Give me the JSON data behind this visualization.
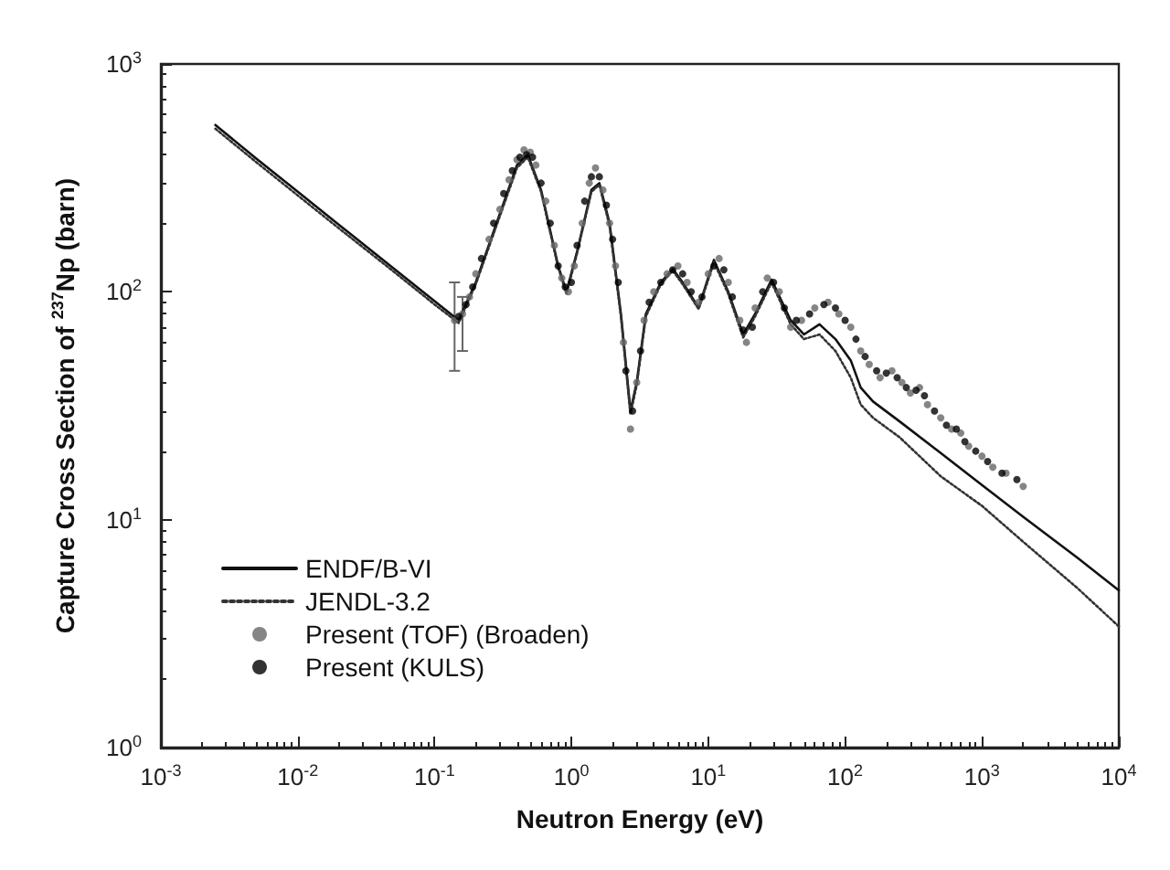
{
  "chart_data": {
    "type": "line",
    "xlabel": "Neutron Energy (eV)",
    "ylabel": "Capture Cross Section of $^{237}$Np (barn)",
    "log": "xy",
    "grid": false,
    "legend": "bottom left",
    "xlim": [
      0.001,
      10000
    ],
    "ylim": [
      1,
      1000
    ],
    "xticks": [
      {
        "value": 0.001,
        "label": "10$^{-3}$"
      },
      {
        "value": 0.01,
        "label": "10$^{-2}$"
      },
      {
        "value": 0.1,
        "label": "10$^{-1}$"
      },
      {
        "value": 1,
        "label": "10$^{0}$"
      },
      {
        "value": 10,
        "label": "10$^{1}$"
      },
      {
        "value": 100,
        "label": "10$^{2}$"
      },
      {
        "value": 1000,
        "label": "10$^{3}$"
      },
      {
        "value": 10000,
        "label": "10$^{4}$"
      }
    ],
    "yticks": [
      {
        "value": 1,
        "label": "10$^{0}$"
      },
      {
        "value": 10,
        "label": "10$^{1}$"
      },
      {
        "value": 100,
        "label": "10$^{2}$"
      },
      {
        "value": 1000,
        "label": "10$^{3}$"
      }
    ],
    "series": [
      {
        "name": "ENDF/B-VI",
        "color": "#111111",
        "line_style": "solid",
        "marker": "none",
        "x": [
          0.0025,
          0.005,
          0.01,
          0.02,
          0.05,
          0.1,
          0.15,
          0.2,
          0.3,
          0.4,
          0.48,
          0.6,
          0.8,
          0.92,
          1.1,
          1.4,
          1.6,
          1.9,
          2.3,
          2.7,
          3.0,
          3.5,
          4.5,
          5.5,
          6.5,
          8.5,
          11,
          14,
          18,
          22,
          29,
          40,
          50,
          65,
          85,
          110,
          130,
          160,
          250,
          500,
          1000,
          2000,
          5000,
          10000
        ],
        "values": [
          540,
          384,
          275,
          197,
          127,
          91,
          75,
          110,
          220,
          360,
          400,
          280,
          130,
          100,
          150,
          280,
          300,
          200,
          80,
          30,
          40,
          80,
          110,
          126,
          110,
          85,
          138,
          100,
          65,
          80,
          113,
          75,
          65,
          72,
          62,
          50,
          38,
          33,
          27,
          19.6,
          14.2,
          10.3,
          6.8,
          4.9
        ]
      },
      {
        "name": "JENDL-3.2",
        "color": "#333333",
        "line_style": "dotted",
        "marker": "none",
        "x": [
          0.0025,
          0.005,
          0.01,
          0.02,
          0.05,
          0.1,
          0.15,
          0.2,
          0.3,
          0.4,
          0.48,
          0.6,
          0.8,
          0.92,
          1.1,
          1.4,
          1.6,
          1.9,
          2.3,
          2.7,
          3.0,
          3.5,
          4.5,
          5.5,
          6.5,
          8.5,
          11,
          14,
          18,
          22,
          29,
          40,
          50,
          65,
          85,
          110,
          130,
          160,
          250,
          500,
          1000,
          2000,
          5000,
          10000
        ],
        "values": [
          520,
          370,
          265,
          190,
          123,
          88,
          73,
          108,
          215,
          350,
          390,
          275,
          128,
          98,
          148,
          275,
          295,
          195,
          78,
          29,
          39,
          78,
          108,
          124,
          108,
          84,
          135,
          98,
          63,
          78,
          110,
          72,
          62,
          65,
          55,
          42,
          32,
          28,
          23,
          15.5,
          11.5,
          8,
          5,
          3.4
        ]
      },
      {
        "name": "Present (TOF) (Broaden)",
        "type": "scatter",
        "color": "#666666",
        "marker": "circle",
        "x": [
          0.14,
          0.16,
          0.18,
          0.2,
          0.25,
          0.3,
          0.35,
          0.4,
          0.45,
          0.5,
          0.55,
          0.65,
          0.75,
          0.85,
          0.95,
          1.05,
          1.2,
          1.35,
          1.5,
          1.7,
          1.9,
          2.1,
          2.4,
          2.7,
          3.0,
          3.4,
          4,
          5,
          6,
          7,
          8.5,
          10,
          12,
          14,
          17,
          19,
          22,
          27,
          33,
          40,
          48,
          60,
          75,
          90,
          110,
          130,
          150,
          180,
          220,
          260,
          300,
          350,
          400,
          500,
          600,
          700,
          800,
          1000,
          1200,
          1500,
          2000
        ],
        "values": [
          75,
          80,
          95,
          120,
          170,
          230,
          310,
          380,
          420,
          410,
          360,
          250,
          160,
          115,
          100,
          130,
          200,
          300,
          350,
          280,
          200,
          130,
          60,
          25,
          40,
          75,
          100,
          120,
          130,
          110,
          90,
          120,
          140,
          110,
          75,
          60,
          85,
          115,
          100,
          70,
          75,
          85,
          90,
          80,
          70,
          55,
          48,
          42,
          45,
          40,
          36,
          38,
          32,
          28,
          25,
          24,
          21,
          19,
          17,
          16,
          14
        ],
        "errors": [
          [
            45,
            110
          ],
          [
            55,
            95
          ],
          null,
          null,
          null,
          null,
          null,
          null,
          null,
          null,
          null,
          null,
          null,
          null,
          null,
          null,
          null,
          null,
          null,
          null,
          null,
          null,
          null,
          null,
          null,
          null,
          null,
          null,
          null,
          null,
          null,
          null,
          null,
          null,
          null,
          null,
          null,
          null,
          null,
          null,
          null,
          null,
          null,
          null,
          null,
          null,
          null,
          null,
          null,
          null,
          null,
          null,
          null,
          null,
          null,
          null,
          null,
          null,
          null,
          null,
          null
        ]
      },
      {
        "name": "Present (KULS)",
        "type": "scatter",
        "color": "#000000",
        "marker": "circle",
        "x": [
          0.15,
          0.17,
          0.19,
          0.22,
          0.27,
          0.32,
          0.37,
          0.42,
          0.47,
          0.52,
          0.6,
          0.7,
          0.8,
          0.9,
          1.0,
          1.1,
          1.25,
          1.4,
          1.6,
          1.8,
          2.0,
          2.2,
          2.5,
          2.8,
          3.2,
          3.7,
          4.5,
          5.5,
          6.5,
          7.5,
          9,
          11,
          13,
          15,
          18,
          21,
          25,
          30,
          36,
          44,
          55,
          70,
          85,
          100,
          120,
          140,
          170,
          200,
          240,
          280,
          330,
          380,
          450,
          550,
          650,
          750,
          900,
          1100,
          1400,
          1800
        ],
        "values": [
          78,
          88,
          105,
          140,
          200,
          270,
          340,
          390,
          400,
          390,
          300,
          200,
          130,
          105,
          110,
          160,
          250,
          320,
          320,
          240,
          170,
          110,
          45,
          30,
          55,
          90,
          110,
          125,
          120,
          100,
          95,
          130,
          125,
          95,
          68,
          70,
          100,
          110,
          85,
          75,
          80,
          88,
          85,
          75,
          62,
          52,
          45,
          44,
          42,
          38,
          37,
          35,
          30,
          26,
          25,
          22,
          20,
          18,
          16,
          15
        ]
      }
    ]
  }
}
